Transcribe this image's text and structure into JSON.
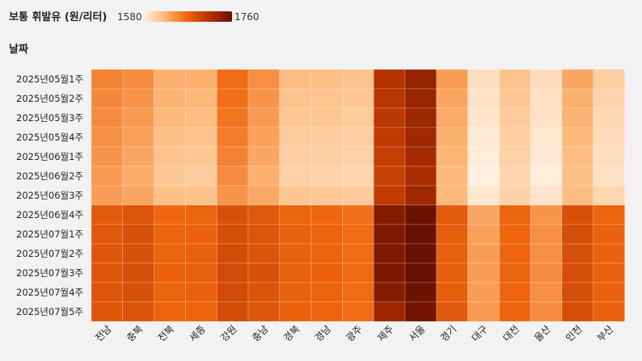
{
  "chart_data": {
    "type": "heatmap",
    "legend": {
      "title": "보통 휘발유 (원/리터)",
      "min": 1580,
      "max": 1760,
      "min_label": "1580",
      "max_label": "1760",
      "colors": [
        "#fff7ee",
        "#fdb97a",
        "#f0660f",
        "#b53200",
        "#6a1000"
      ]
    },
    "ylabel": "날짜",
    "rows": [
      "2025년05월1주",
      "2025년05월2주",
      "2025년05월3주",
      "2025년05월4주",
      "2025년06월1주",
      "2025년06월2주",
      "2025년06월3주",
      "2025년06월4주",
      "2025년07월1주",
      "2025년07월2주",
      "2025년07월3주",
      "2025년07월4주",
      "2025년07월5주"
    ],
    "columns": [
      "전남",
      "충북",
      "전북",
      "세종",
      "강원",
      "충남",
      "경북",
      "경남",
      "광주",
      "제주",
      "서울",
      "경기",
      "대구",
      "대전",
      "울산",
      "인천",
      "부산"
    ],
    "values": [
      [
        1655,
        1650,
        1630,
        1630,
        1668,
        1648,
        1622,
        1620,
        1618,
        1715,
        1735,
        1640,
        1598,
        1618,
        1600,
        1635,
        1610
      ],
      [
        1652,
        1645,
        1628,
        1625,
        1665,
        1645,
        1618,
        1617,
        1615,
        1712,
        1732,
        1636,
        1595,
        1615,
        1597,
        1630,
        1606
      ],
      [
        1650,
        1642,
        1625,
        1622,
        1662,
        1642,
        1615,
        1615,
        1613,
        1710,
        1730,
        1633,
        1593,
        1612,
        1595,
        1628,
        1603
      ],
      [
        1648,
        1638,
        1620,
        1617,
        1658,
        1638,
        1612,
        1612,
        1610,
        1708,
        1728,
        1630,
        1590,
        1610,
        1592,
        1625,
        1600
      ],
      [
        1645,
        1635,
        1618,
        1615,
        1655,
        1635,
        1610,
        1610,
        1608,
        1705,
        1725,
        1627,
        1588,
        1608,
        1590,
        1622,
        1598
      ],
      [
        1642,
        1632,
        1615,
        1612,
        1650,
        1630,
        1608,
        1607,
        1605,
        1702,
        1722,
        1624,
        1585,
        1605,
        1588,
        1620,
        1596
      ],
      [
        1640,
        1636,
        1620,
        1618,
        1645,
        1634,
        1615,
        1614,
        1612,
        1706,
        1728,
        1625,
        1592,
        1606,
        1594,
        1622,
        1604
      ],
      [
        1680,
        1685,
        1670,
        1672,
        1688,
        1682,
        1672,
        1670,
        1665,
        1745,
        1758,
        1680,
        1635,
        1672,
        1645,
        1688,
        1672
      ],
      [
        1682,
        1688,
        1672,
        1674,
        1690,
        1685,
        1675,
        1672,
        1668,
        1748,
        1760,
        1678,
        1638,
        1670,
        1648,
        1690,
        1674
      ],
      [
        1683,
        1688,
        1673,
        1675,
        1692,
        1686,
        1675,
        1673,
        1668,
        1748,
        1760,
        1676,
        1640,
        1671,
        1648,
        1689,
        1674
      ],
      [
        1684,
        1690,
        1674,
        1676,
        1693,
        1687,
        1676,
        1674,
        1669,
        1749,
        1760,
        1677,
        1640,
        1672,
        1650,
        1690,
        1675
      ],
      [
        1685,
        1688,
        1673,
        1675,
        1693,
        1686,
        1675,
        1673,
        1668,
        1744,
        1758,
        1678,
        1640,
        1671,
        1648,
        1690,
        1674
      ],
      [
        1683,
        1686,
        1672,
        1673,
        1692,
        1684,
        1674,
        1672,
        1667,
        1730,
        1756,
        1682,
        1642,
        1672,
        1650,
        1690,
        1674
      ]
    ]
  }
}
